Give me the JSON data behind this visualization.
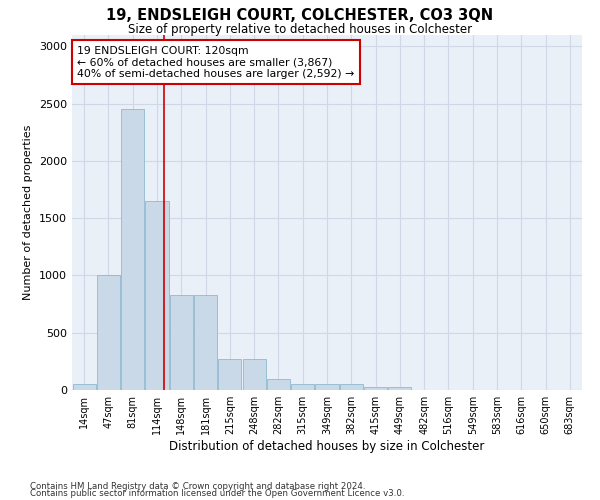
{
  "title": "19, ENDSLEIGH COURT, COLCHESTER, CO3 3QN",
  "subtitle": "Size of property relative to detached houses in Colchester",
  "xlabel": "Distribution of detached houses by size in Colchester",
  "ylabel": "Number of detached properties",
  "categories": [
    "14sqm",
    "47sqm",
    "81sqm",
    "114sqm",
    "148sqm",
    "181sqm",
    "215sqm",
    "248sqm",
    "282sqm",
    "315sqm",
    "349sqm",
    "382sqm",
    "415sqm",
    "449sqm",
    "482sqm",
    "516sqm",
    "549sqm",
    "583sqm",
    "616sqm",
    "650sqm",
    "683sqm"
  ],
  "values": [
    50,
    1000,
    2450,
    1650,
    830,
    830,
    270,
    270,
    100,
    50,
    50,
    50,
    30,
    30,
    0,
    0,
    0,
    0,
    0,
    0,
    0
  ],
  "bar_color": "#c9d9e8",
  "bar_edge_color": "#8fb8d0",
  "red_line_x": 3.27,
  "red_line_color": "#cc0000",
  "annotation_text": "19 ENDSLEIGH COURT: 120sqm\n← 60% of detached houses are smaller (3,867)\n40% of semi-detached houses are larger (2,592) →",
  "annotation_box_color": "#ffffff",
  "annotation_border_color": "#cc0000",
  "ylim": [
    0,
    3100
  ],
  "yticks": [
    0,
    500,
    1000,
    1500,
    2000,
    2500,
    3000
  ],
  "grid_color": "#d0d8e8",
  "bg_color": "#eaf0f8",
  "footer_line1": "Contains HM Land Registry data © Crown copyright and database right 2024.",
  "footer_line2": "Contains public sector information licensed under the Open Government Licence v3.0."
}
